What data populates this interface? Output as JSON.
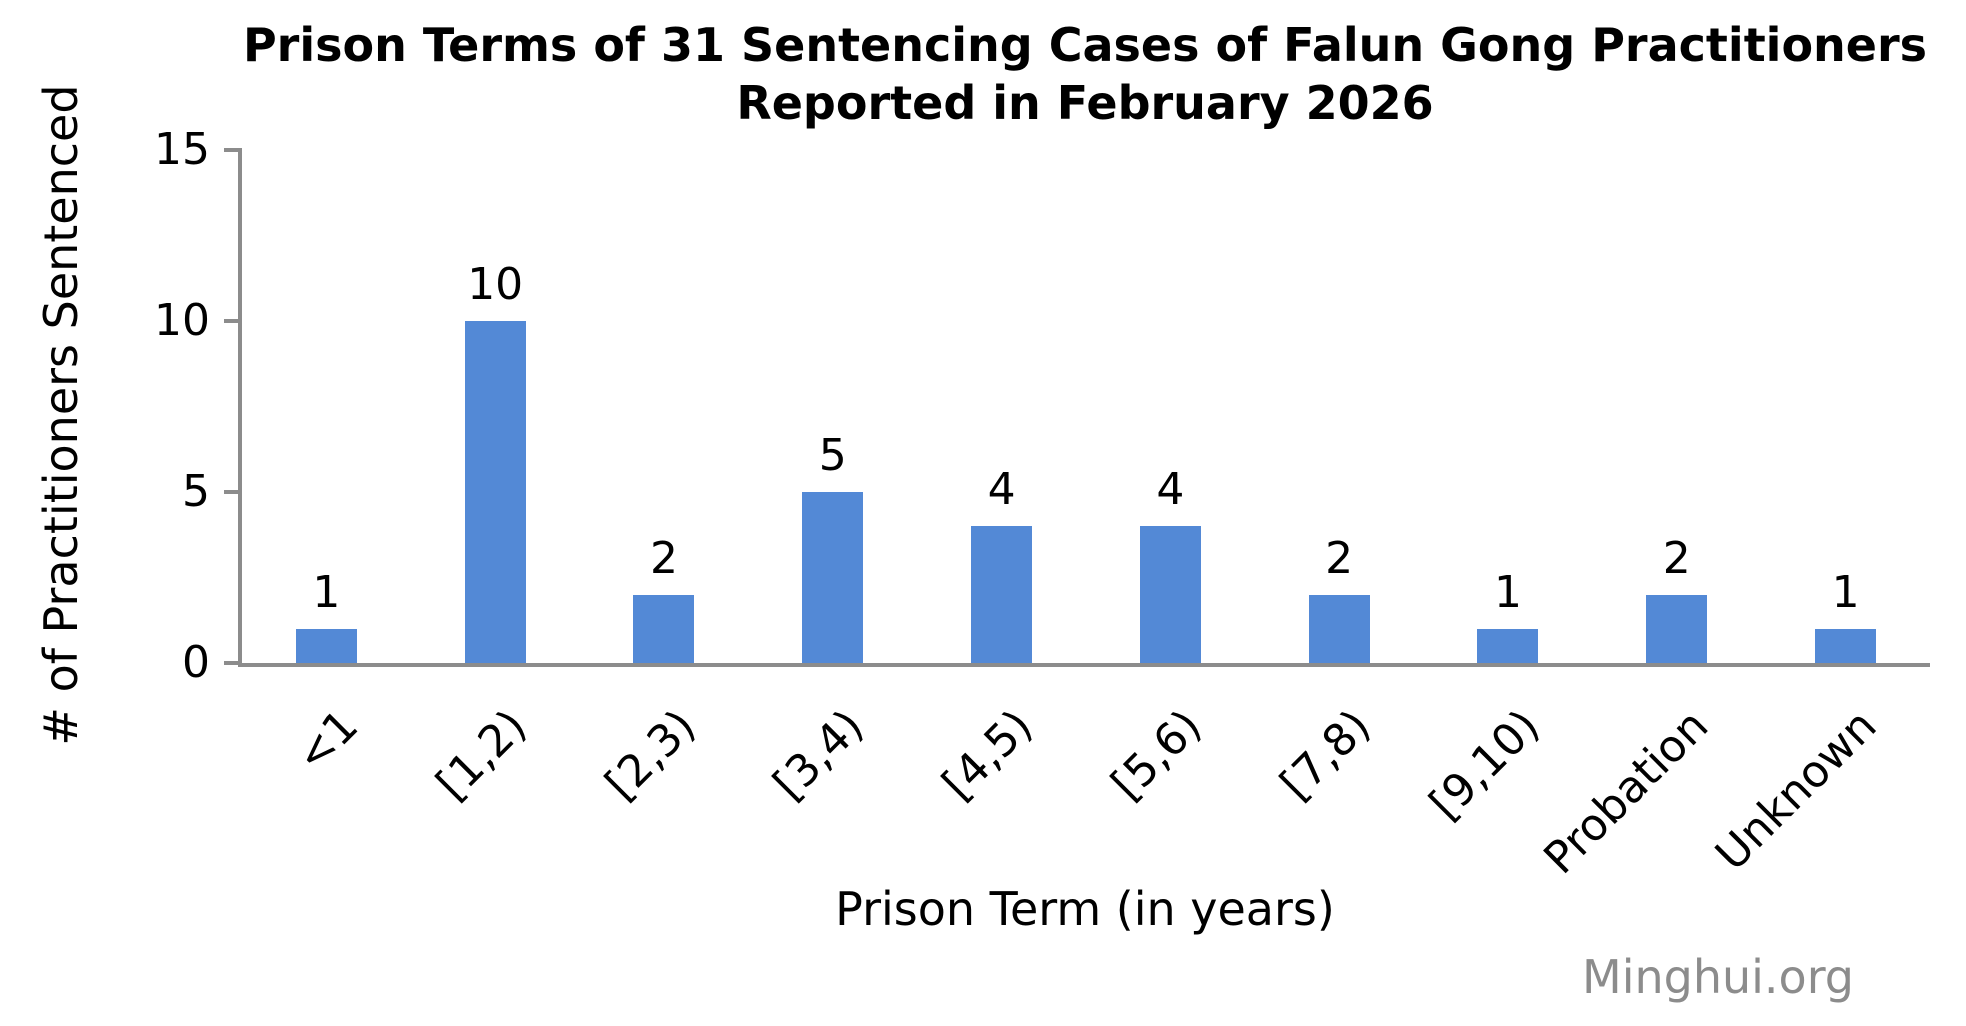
{
  "chart_data": {
    "type": "bar",
    "title": "Prison Terms of 31 Sentencing Cases of Falun Gong Practitioners Reported in February 2026",
    "title_lines": [
      "Prison Terms of 31 Sentencing Cases of Falun Gong Practitioners",
      "Reported in February 2026"
    ],
    "categories": [
      "<1",
      "[1,2)",
      "[2,3)",
      "[3,4)",
      "[4,5)",
      "[5,6)",
      "[7,8)",
      "[9,10)",
      "Probation",
      "Unknown"
    ],
    "values": [
      1,
      10,
      2,
      5,
      4,
      4,
      2,
      1,
      2,
      1
    ],
    "xlabel": "Prison Term (in years)",
    "ylabel": "# of Practitioners Sentenced",
    "ylim": [
      0,
      15
    ],
    "yticks": [
      0,
      5,
      10,
      15
    ],
    "grid": false,
    "legend_position": "none",
    "bar_color": "#5389d6",
    "axis_color": "#8c8c8c"
  },
  "watermark": {
    "text": "Minghui.org",
    "color": "#8c8c8c"
  }
}
